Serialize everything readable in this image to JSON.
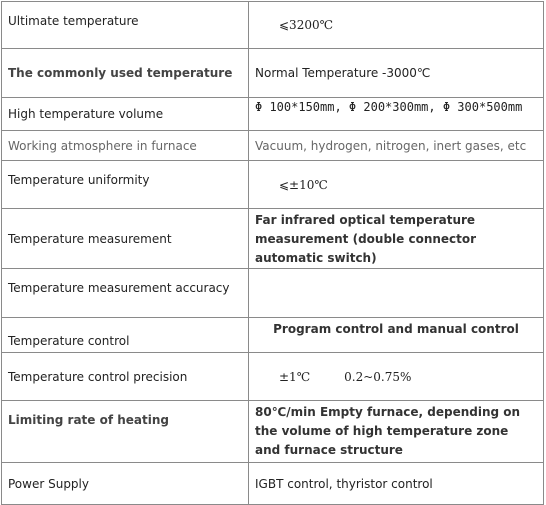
{
  "table": {
    "rows": [
      {
        "label": "Ultimate temperature",
        "values": [
          "⩽3200℃"
        ]
      },
      {
        "label": "The commonly used temperature",
        "values": [
          "Normal Temperature -3000℃"
        ]
      },
      {
        "label": "High temperature volume",
        "values": [
          "Φ 100*150mm, Φ 200*300mm, Φ 300*500mm"
        ]
      },
      {
        "label": "Working atmosphere in furnace",
        "values": [
          "Vacuum, hydrogen, nitrogen, inert gases, etc"
        ]
      },
      {
        "label": "Temperature uniformity",
        "values": [
          "⩽±10℃"
        ]
      },
      {
        "label": "Temperature measurement",
        "values": [
          "Far infrared optical temperature measurement (double connector automatic switch)"
        ]
      },
      {
        "label": "Temperature measurement accuracy",
        "values": []
      },
      {
        "label": "Temperature control",
        "values": [
          "Program control and manual control"
        ]
      },
      {
        "label": "Temperature control precision",
        "values": [
          "±1℃",
          "0.2~0.75%"
        ]
      },
      {
        "label": "Limiting rate of heating",
        "values": [
          "80℃/min Empty furnace, depending on the volume of high temperature zone and furnace structure"
        ]
      },
      {
        "label": "Power Supply",
        "values": [
          "IGBT control, thyristor control"
        ]
      }
    ]
  }
}
